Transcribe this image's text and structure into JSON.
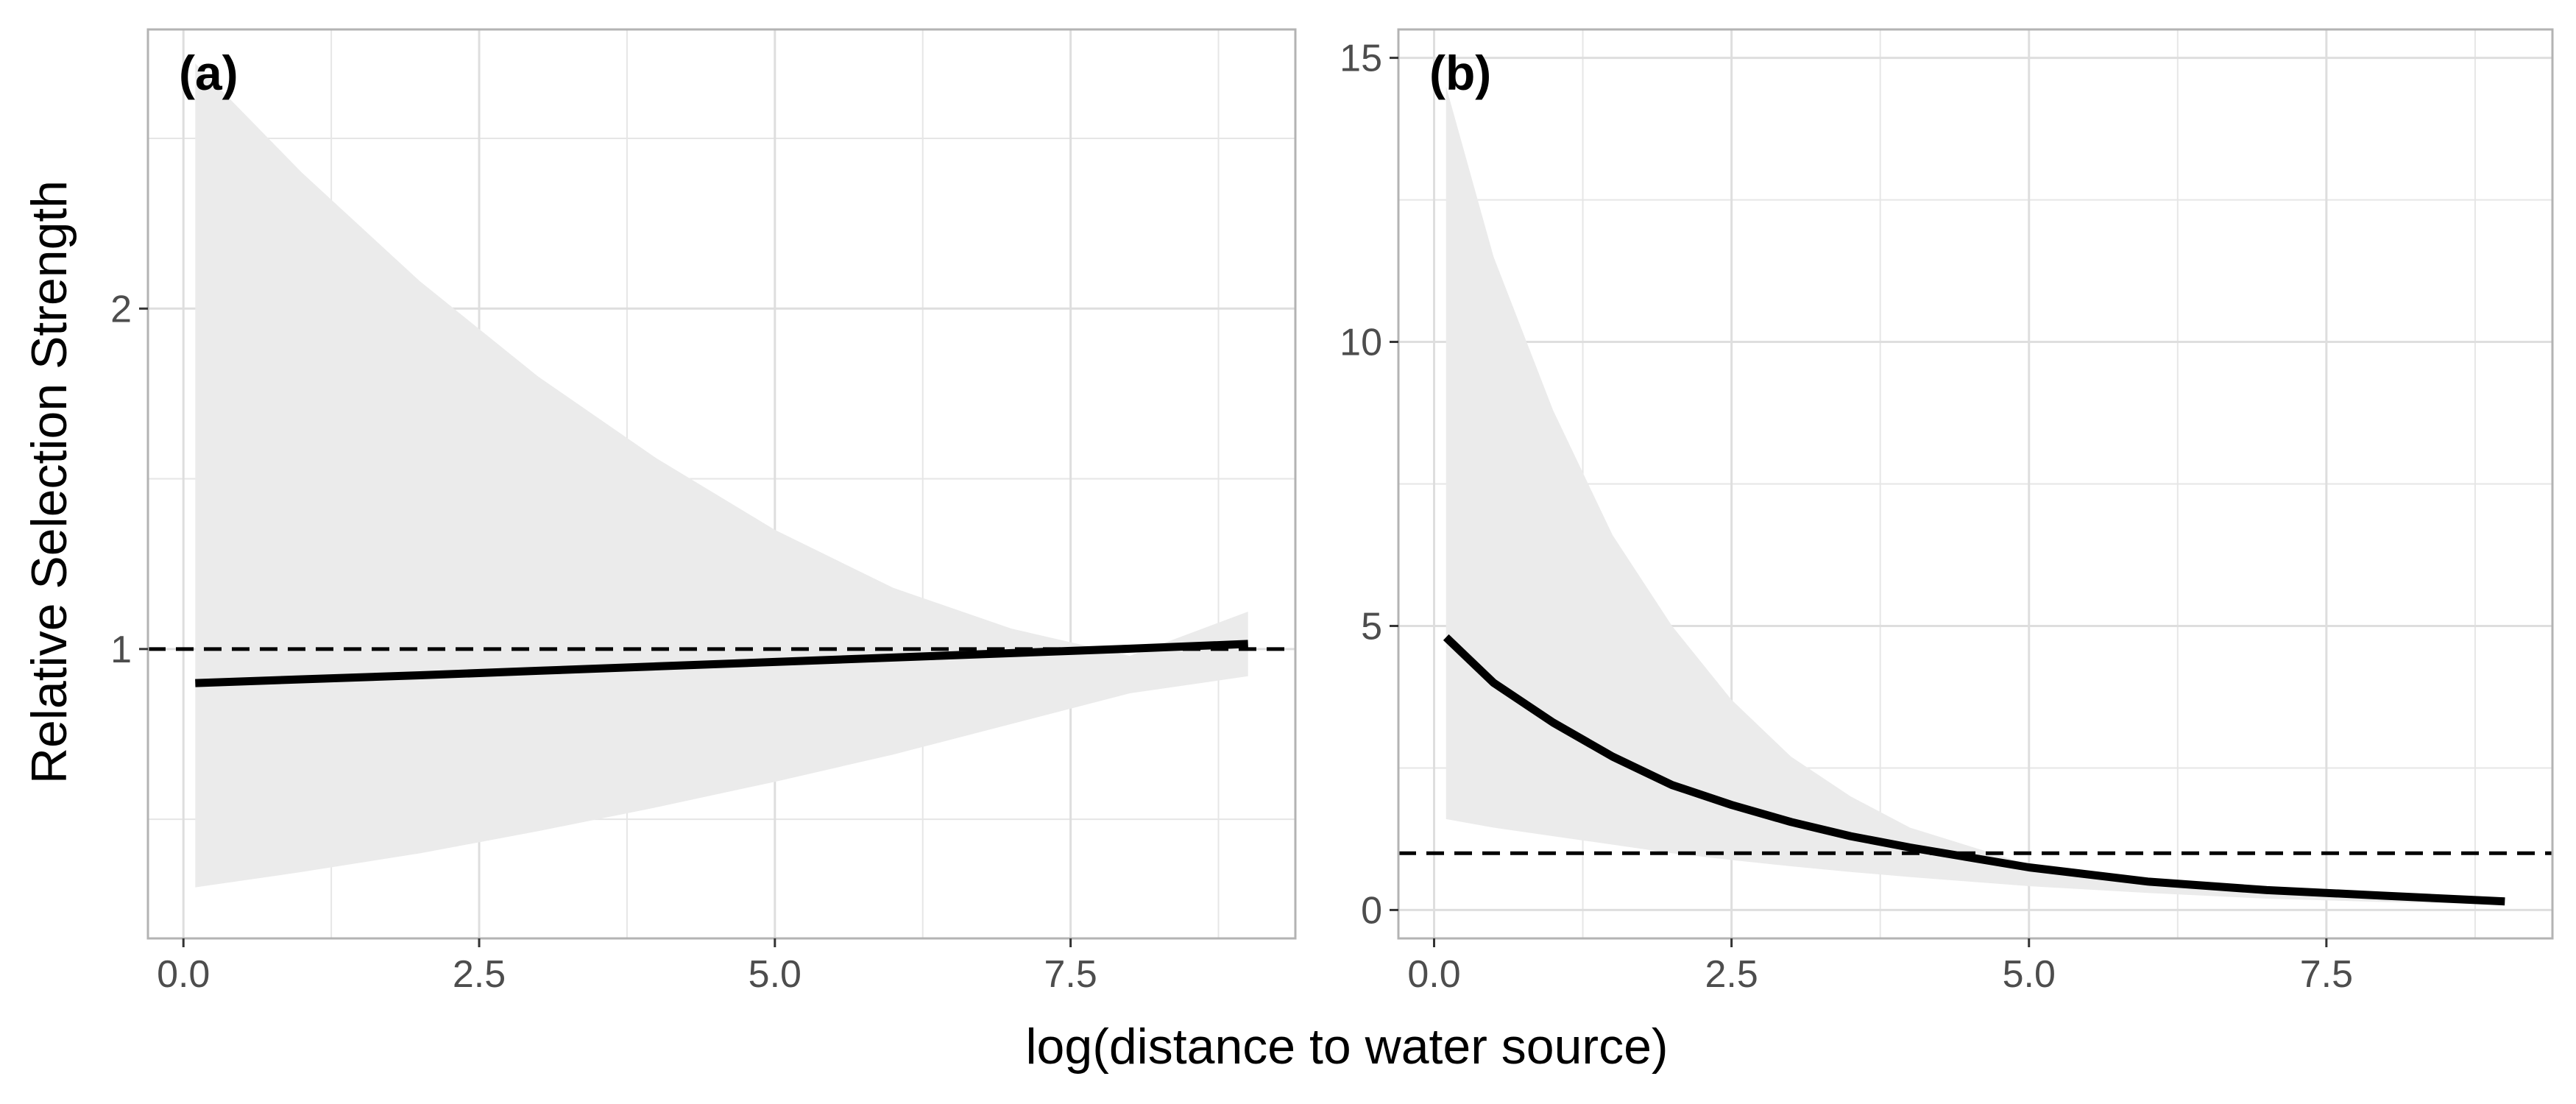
{
  "chart_data": [
    {
      "type": "line",
      "panel_tag": "(a)",
      "xlabel": "log(distance to water source)",
      "ylabel": "Relative Selection Strength",
      "xlim": [
        -0.3,
        9.4
      ],
      "ylim": [
        0.15,
        2.82
      ],
      "x_ticks": [
        0.0,
        2.5,
        5.0,
        7.5
      ],
      "x_tick_labels": [
        "0.0",
        "2.5",
        "5.0",
        "7.5"
      ],
      "y_ticks": [
        1,
        2
      ],
      "y_tick_labels": [
        "1",
        "2"
      ],
      "y_minor_ticks": [
        0.5,
        1.5,
        2.5
      ],
      "x_minor_ticks": [
        1.25,
        3.75,
        6.25,
        8.75
      ],
      "reference_line": {
        "y": 1,
        "style": "dashed"
      },
      "series": [
        {
          "x": [
            0.1,
            1.0,
            2.0,
            3.0,
            4.0,
            5.0,
            6.0,
            7.0,
            8.0,
            9.0
          ],
          "values": [
            0.9,
            0.911,
            0.923,
            0.936,
            0.949,
            0.962,
            0.975,
            0.988,
            1.001,
            1.015
          ],
          "ci_lower": [
            0.3,
            0.345,
            0.4,
            0.465,
            0.535,
            0.61,
            0.69,
            0.78,
            0.87,
            0.92
          ],
          "ci_upper": [
            2.72,
            2.4,
            2.08,
            1.8,
            1.56,
            1.35,
            1.18,
            1.06,
            0.98,
            1.11
          ]
        }
      ],
      "grid": true,
      "colors": {
        "line": "#000000",
        "ribbon": "#ebebeb",
        "grid": "#e6e6e6",
        "border": "#b3b3b3"
      }
    },
    {
      "type": "line",
      "panel_tag": "(b)",
      "xlabel": "log(distance to water source)",
      "ylabel": "",
      "xlim": [
        -0.3,
        9.4
      ],
      "ylim": [
        -0.5,
        15.5
      ],
      "x_ticks": [
        0.0,
        2.5,
        5.0,
        7.5
      ],
      "x_tick_labels": [
        "0.0",
        "2.5",
        "5.0",
        "7.5"
      ],
      "y_ticks": [
        0,
        5,
        10,
        15
      ],
      "y_tick_labels": [
        "0",
        "5",
        "10",
        "15"
      ],
      "y_minor_ticks": [
        2.5,
        7.5,
        12.5
      ],
      "x_minor_ticks": [
        1.25,
        3.75,
        6.25,
        8.75
      ],
      "reference_line": {
        "y": 1,
        "style": "dashed"
      },
      "series": [
        {
          "x": [
            0.1,
            0.5,
            1.0,
            1.5,
            2.0,
            2.5,
            3.0,
            3.5,
            4.0,
            5.0,
            6.0,
            7.0,
            8.0,
            9.0
          ],
          "values": [
            4.8,
            4.0,
            3.3,
            2.7,
            2.2,
            1.85,
            1.55,
            1.3,
            1.1,
            0.75,
            0.5,
            0.35,
            0.25,
            0.15
          ],
          "ci_lower": [
            1.6,
            1.45,
            1.3,
            1.15,
            1.0,
            0.88,
            0.77,
            0.67,
            0.58,
            0.42,
            0.3,
            0.2,
            0.14,
            0.1
          ],
          "ci_upper": [
            14.5,
            11.5,
            8.8,
            6.6,
            5.0,
            3.7,
            2.7,
            2.0,
            1.45,
            0.8,
            0.45,
            0.28,
            0.2,
            0.15
          ]
        }
      ],
      "grid": true,
      "colors": {
        "line": "#000000",
        "ribbon": "#ebebeb",
        "grid": "#e6e6e6",
        "border": "#b3b3b3"
      }
    }
  ]
}
